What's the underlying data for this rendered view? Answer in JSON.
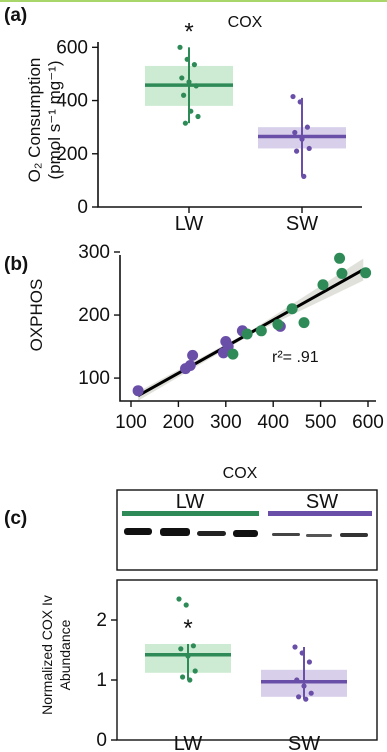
{
  "colors": {
    "lw": "#2e8b57",
    "lw_fill": "#cdebd2",
    "sw": "#6a4fa8",
    "sw_fill": "#d8d0ea",
    "line": "#000000",
    "band": "#dcdcd6"
  },
  "chart_data": [
    {
      "panel": "(a)",
      "type": "box",
      "title": "COX",
      "ylabel": "O₂ Consumption",
      "ylabel_units": "(pmol s⁻¹ mg⁻¹)",
      "ylim": [
        0,
        620
      ],
      "yticks": [
        0,
        200,
        400,
        600
      ],
      "categories": [
        "LW",
        "SW"
      ],
      "series": [
        {
          "category": "LW",
          "median": 458,
          "q1": 380,
          "q3": 530,
          "whisker_low": 315,
          "whisker_high": 600,
          "points": [
            600,
            555,
            535,
            485,
            470,
            455,
            420,
            360,
            340,
            315
          ],
          "significance": "*"
        },
        {
          "category": "SW",
          "median": 265,
          "q1": 220,
          "q3": 300,
          "whisker_low": 115,
          "whisker_high": 410,
          "points": [
            415,
            395,
            300,
            280,
            255,
            220,
            210,
            115
          ],
          "significance": ""
        }
      ]
    },
    {
      "panel": "(b)",
      "type": "scatter",
      "ylabel": "OXPHOS",
      "xlim": [
        100,
        600
      ],
      "ylim": [
        70,
        300
      ],
      "xticks": [
        100,
        200,
        300,
        400,
        500,
        600
      ],
      "yticks": [
        100,
        200,
        300
      ],
      "annotation": "r²= .91",
      "regression": {
        "x": [
          115,
          590
        ],
        "y": [
          72,
          272
        ]
      },
      "series": [
        {
          "group": "SW",
          "points": [
            [
              115,
              80
            ],
            [
              215,
              115
            ],
            [
              225,
              120
            ],
            [
              230,
              136
            ],
            [
              295,
              140
            ],
            [
              300,
              158
            ],
            [
              305,
              150
            ],
            [
              335,
              175
            ],
            [
              415,
              182
            ]
          ]
        },
        {
          "group": "LW",
          "points": [
            [
              315,
              138
            ],
            [
              345,
              170
            ],
            [
              375,
              175
            ],
            [
              410,
              185
            ],
            [
              440,
              210
            ],
            [
              465,
              188
            ],
            [
              505,
              248
            ],
            [
              540,
              290
            ],
            [
              545,
              266
            ],
            [
              595,
              267
            ]
          ]
        }
      ]
    },
    {
      "panel": "(c)",
      "type": "box",
      "title": "COX",
      "blot_labels": [
        "LW",
        "SW"
      ],
      "ylabel": "Normalized COX Iv",
      "ylabel_line2": "Abundance",
      "ylim": [
        0,
        2.6
      ],
      "yticks": [
        0,
        1,
        2
      ],
      "categories": [
        "LW",
        "SW"
      ],
      "series": [
        {
          "category": "LW",
          "median": 1.42,
          "q1": 1.12,
          "q3": 1.6,
          "whisker_low": 1.0,
          "whisker_high": 1.6,
          "points": [
            2.35,
            2.25,
            1.57,
            1.52,
            1.4,
            1.15,
            1.05,
            1.0
          ],
          "significance": "*"
        },
        {
          "category": "SW",
          "median": 0.97,
          "q1": 0.72,
          "q3": 1.17,
          "whisker_low": 0.68,
          "whisker_high": 1.55,
          "points": [
            1.55,
            1.45,
            1.3,
            1.0,
            0.9,
            0.78,
            0.72,
            0.68
          ],
          "significance": ""
        }
      ]
    }
  ]
}
